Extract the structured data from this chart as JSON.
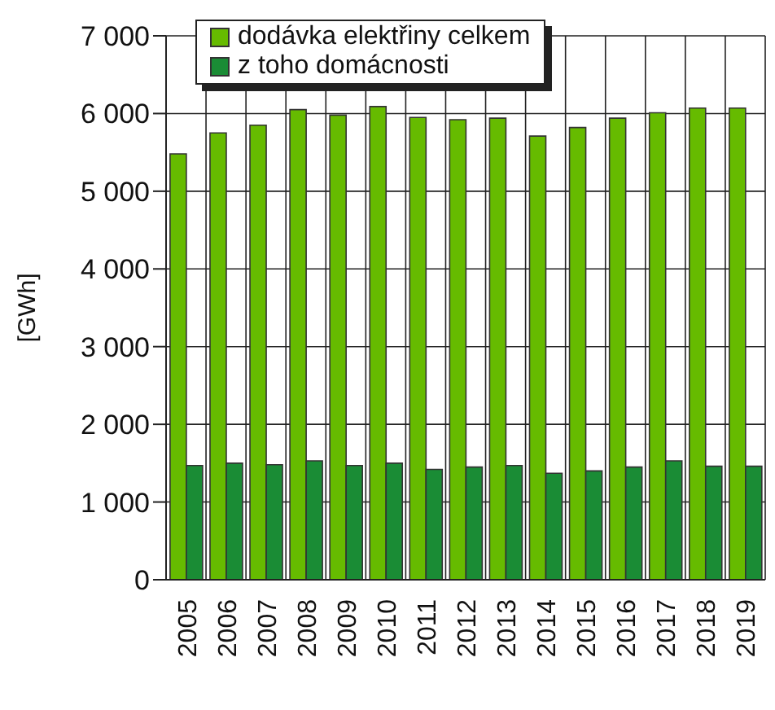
{
  "chart_data": {
    "type": "bar",
    "ylabel": "[GWh]",
    "categories": [
      "2005",
      "2006",
      "2007",
      "2008",
      "2009",
      "2010",
      "2011",
      "2012",
      "2013",
      "2014",
      "2015",
      "2016",
      "2017",
      "2018",
      "2019"
    ],
    "series": [
      {
        "name": "dodávka elektřiny celkem",
        "color": "#66bb00",
        "values": [
          5480,
          5750,
          5850,
          6050,
          5980,
          6090,
          5950,
          5920,
          5940,
          5710,
          5820,
          5940,
          6010,
          6070,
          6070
        ]
      },
      {
        "name": "z toho domácnosti",
        "color": "#1a8c35",
        "values": [
          1470,
          1500,
          1480,
          1530,
          1470,
          1500,
          1420,
          1450,
          1470,
          1370,
          1400,
          1450,
          1530,
          1460,
          1460
        ]
      }
    ],
    "ylim": [
      0,
      7000
    ],
    "yticks": [
      {
        "value": 0,
        "label": "0"
      },
      {
        "value": 1000,
        "label": "1 000"
      },
      {
        "value": 2000,
        "label": "2 000"
      },
      {
        "value": 3000,
        "label": "3 000"
      },
      {
        "value": 4000,
        "label": "4 000"
      },
      {
        "value": 5000,
        "label": "5 000"
      },
      {
        "value": 6000,
        "label": "6 000"
      },
      {
        "value": 7000,
        "label": "7 000"
      }
    ],
    "grid": true,
    "legend": "top left"
  }
}
